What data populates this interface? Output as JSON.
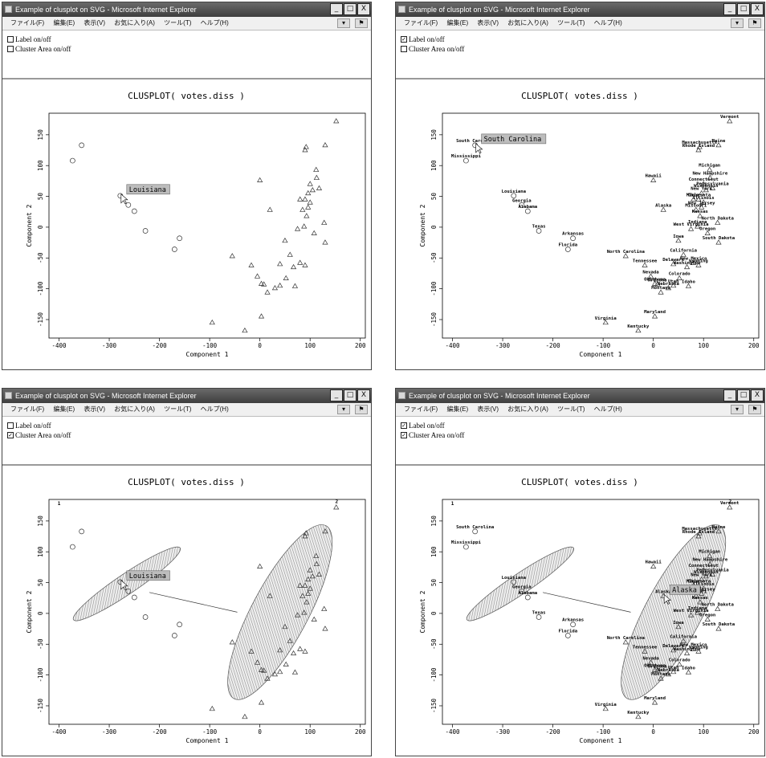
{
  "window_title": "Example of clusplot on SVG - Microsoft Internet Explorer",
  "menu_items": [
    "ファイル(F)",
    "編集(E)",
    "表示(V)",
    "お気に入り(A)",
    "ツール(T)",
    "ヘルプ(H)"
  ],
  "window_buttons": {
    "minimize": "_",
    "maximize": "□",
    "close": "X"
  },
  "controls": {
    "label_toggle": "Label on/off",
    "area_toggle": "Cluster Area on/off"
  },
  "panels": [
    {
      "label_checked": false,
      "area_checked": false,
      "tooltip": "Louisiana"
    },
    {
      "label_checked": true,
      "area_checked": false,
      "tooltip": "South Carolina"
    },
    {
      "label_checked": false,
      "area_checked": true,
      "tooltip": "Louisiana"
    },
    {
      "label_checked": true,
      "area_checked": true,
      "tooltip": "Alaska"
    }
  ],
  "chart_data": {
    "type": "scatter",
    "title": "CLUSPLOT( votes.diss )",
    "xlabel": "Component 1",
    "ylabel": "Component 2",
    "xlim": [
      -420,
      210
    ],
    "ylim": [
      -180,
      185
    ],
    "x_ticks": [
      -400,
      -300,
      -200,
      -100,
      0,
      100,
      200
    ],
    "y_ticks": [
      -150,
      -100,
      -50,
      0,
      50,
      100,
      150
    ],
    "cluster_labels": [
      "1",
      "2"
    ],
    "series": [
      {
        "marker": "circle",
        "points": [
          {
            "x": -373,
            "y": 108,
            "label": "Mississippi"
          },
          {
            "x": -355,
            "y": 133,
            "label": "South Carolina"
          },
          {
            "x": -278,
            "y": 51,
            "label": "Louisiana"
          },
          {
            "x": -262,
            "y": 36,
            "label": "Georgia"
          },
          {
            "x": -250,
            "y": 26,
            "label": "Alabama"
          },
          {
            "x": -228,
            "y": -6,
            "label": "Texas"
          },
          {
            "x": -170,
            "y": -36,
            "label": "Florida"
          },
          {
            "x": -160,
            "y": -18,
            "label": "Arkansas"
          }
        ]
      },
      {
        "marker": "triangle",
        "points": [
          {
            "x": 152,
            "y": 172,
            "label": "Vermont"
          },
          {
            "x": 130,
            "y": 133,
            "label": "Maine"
          },
          {
            "x": 92,
            "y": 130,
            "label": "Massachusetts"
          },
          {
            "x": 90,
            "y": 125,
            "label": "Rhode Island"
          },
          {
            "x": 112,
            "y": 93,
            "label": "Michigan"
          },
          {
            "x": 0,
            "y": 76,
            "label": "Hawaii"
          },
          {
            "x": 113,
            "y": 80,
            "label": "New Hampshire"
          },
          {
            "x": 100,
            "y": 70,
            "label": "Connecticut"
          },
          {
            "x": 118,
            "y": 63,
            "label": "Pennsylvania"
          },
          {
            "x": 105,
            "y": 60,
            "label": "Wisconsin"
          },
          {
            "x": 96,
            "y": 55,
            "label": "New York"
          },
          {
            "x": 90,
            "y": 45,
            "label": "Minnesota"
          },
          {
            "x": 100,
            "y": 40,
            "label": "Illinois"
          },
          {
            "x": 80,
            "y": 45,
            "label": "Ohio"
          },
          {
            "x": 20,
            "y": 28,
            "label": "Alaska"
          },
          {
            "x": 96,
            "y": 32,
            "label": "New Jersey"
          },
          {
            "x": 93,
            "y": 18,
            "label": "Kansas"
          },
          {
            "x": 85,
            "y": 28,
            "label": "Missouri"
          },
          {
            "x": 128,
            "y": 7,
            "label": "North Dakota"
          },
          {
            "x": 88,
            "y": 1,
            "label": "Indiana"
          },
          {
            "x": 75,
            "y": -3,
            "label": "West Virginia"
          },
          {
            "x": 130,
            "y": -25,
            "label": "South Dakota"
          },
          {
            "x": 108,
            "y": -10,
            "label": "Oregon"
          },
          {
            "x": 60,
            "y": -45,
            "label": "California"
          },
          {
            "x": 50,
            "y": -22,
            "label": "Iowa"
          },
          {
            "x": 67,
            "y": -65,
            "label": "Washington"
          },
          {
            "x": -55,
            "y": -47,
            "label": "North Carolina"
          },
          {
            "x": -17,
            "y": -62,
            "label": "Tennessee"
          },
          {
            "x": 80,
            "y": -58,
            "label": "New Mexico"
          },
          {
            "x": 90,
            "y": -62,
            "label": "Wyoming"
          },
          {
            "x": -5,
            "y": -80,
            "label": "Nevada"
          },
          {
            "x": 52,
            "y": -83,
            "label": "Colorado"
          },
          {
            "x": 3,
            "y": -92,
            "label": "Oklahoma"
          },
          {
            "x": 8,
            "y": -93,
            "label": "Arizona"
          },
          {
            "x": 40,
            "y": -95,
            "label": "Utah"
          },
          {
            "x": 70,
            "y": -96,
            "label": "Idaho"
          },
          {
            "x": 30,
            "y": -99,
            "label": "Nebraska"
          },
          {
            "x": 15,
            "y": -106,
            "label": "Montana"
          },
          {
            "x": 3,
            "y": -145,
            "label": "Maryland"
          },
          {
            "x": -95,
            "y": -155,
            "label": "Virginia"
          },
          {
            "x": -30,
            "y": -168,
            "label": "Kentucky"
          },
          {
            "x": 40,
            "y": -60,
            "label": "Delaware"
          }
        ]
      }
    ],
    "grid": false,
    "legend": "none"
  }
}
